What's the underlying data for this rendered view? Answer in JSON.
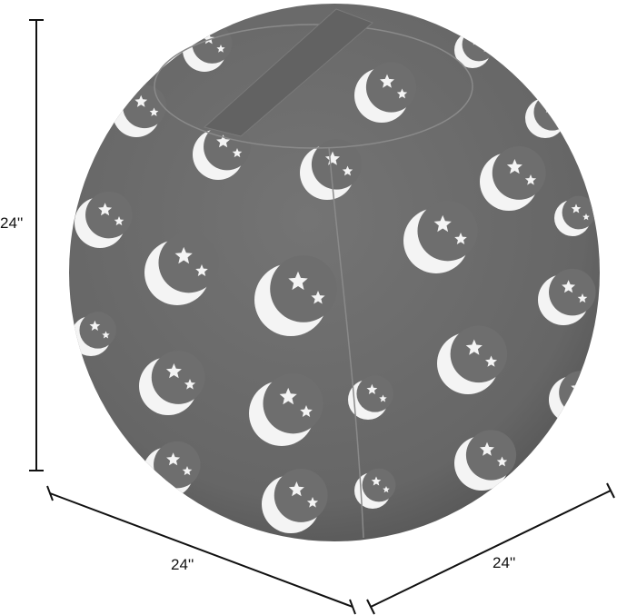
{
  "product": {
    "description_visible": "",
    "colors": {
      "fabric": "#6e6e6e",
      "pattern": "#f4f4f4",
      "lines": "#111111"
    },
    "pattern_icons": [
      "moon-icon",
      "star-icon"
    ]
  },
  "dimensions": {
    "height": "24''",
    "width": "24''",
    "depth": "24''"
  }
}
